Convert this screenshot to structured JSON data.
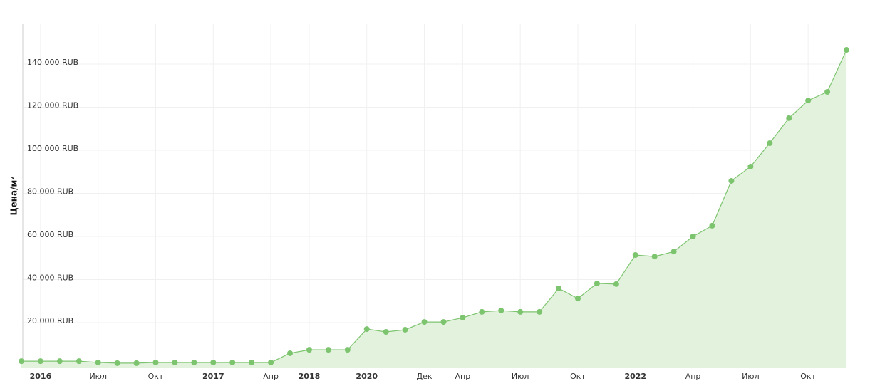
{
  "chart_data": {
    "type": "area",
    "y_label": "Цена/м²",
    "color": "#7dc46f",
    "fill": "#e2f2dd",
    "categories": [
      null,
      "2016",
      null,
      null,
      "Июл",
      null,
      null,
      "Окт",
      null,
      null,
      "2017",
      null,
      null,
      "Апр",
      null,
      "2018",
      null,
      null,
      "2020",
      null,
      null,
      "Дек",
      null,
      "Апр",
      null,
      null,
      "Июл",
      null,
      null,
      "Окт",
      null,
      null,
      "2022",
      null,
      null,
      "Апр",
      null,
      null,
      "Июл",
      null,
      null,
      "Окт",
      null,
      null
    ],
    "values": [
      2100,
      2100,
      2100,
      2100,
      1500,
      1200,
      1200,
      1500,
      1500,
      1500,
      1500,
      1500,
      1500,
      1500,
      5800,
      7400,
      7400,
      7400,
      17000,
      15700,
      16700,
      20300,
      20300,
      22300,
      25000,
      25600,
      25000,
      25000,
      35900,
      31200,
      38200,
      37900,
      51400,
      50700,
      53000,
      60000,
      65000,
      85800,
      92400,
      103300,
      114900,
      123100,
      127100,
      146600
    ],
    "ylim": [
      0,
      160000
    ],
    "yticks": [
      {
        "value": 20000,
        "label": "20 000 RUB"
      },
      {
        "value": 40000,
        "label": "40 000 RUB"
      },
      {
        "value": 60000,
        "label": "60 000 RUB"
      },
      {
        "value": 80000,
        "label": "80 000 RUB"
      },
      {
        "value": 100000,
        "label": "100 000 RUB"
      },
      {
        "value": 120000,
        "label": "120 000 RUB"
      },
      {
        "value": 140000,
        "label": "140 000 RUB"
      }
    ],
    "grid": true
  }
}
